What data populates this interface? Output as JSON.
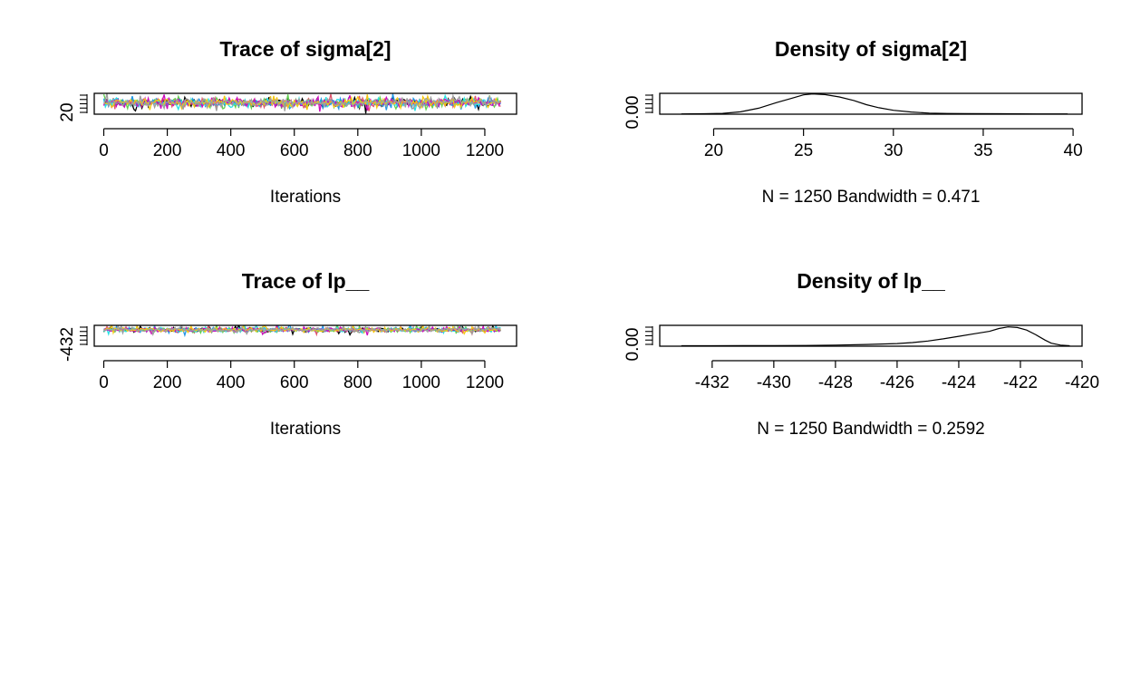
{
  "chart_data": [
    {
      "type": "line",
      "title": "Trace of sigma[2]",
      "xlabel": "Iterations",
      "ylabel": "",
      "xlim": [
        -30,
        1300
      ],
      "ylim": [
        19,
        29
      ],
      "x_ticks": [
        0,
        200,
        400,
        600,
        800,
        1000,
        1200
      ],
      "y_tick_labels": [
        "20"
      ],
      "series_colors": [
        "#000000",
        "#DF536B",
        "#61D04F",
        "#2297E6",
        "#28E2E5",
        "#CD0BBC",
        "#F5C710",
        "#9E9E9E"
      ],
      "series_center": 24.5,
      "series_spread": 1.8,
      "n_iterations": 1250
    },
    {
      "type": "line",
      "title": "Density of sigma[2]",
      "xlabel": "N = 1250   Bandwidth = 0.471",
      "ylabel": "",
      "xlim": [
        17,
        40.5
      ],
      "ylim": [
        -0.003,
        0.2
      ],
      "x_ticks": [
        20,
        25,
        30,
        35,
        40
      ],
      "y_tick_labels": [
        "0.00"
      ],
      "x": [
        18.2,
        19.5,
        20.5,
        21.5,
        22.5,
        23.5,
        24.3,
        25.0,
        25.5,
        26.2,
        27.0,
        27.8,
        28.5,
        29.2,
        30.0,
        31.0,
        32.0,
        33.0,
        34.0,
        36.0,
        38.0,
        39.7
      ],
      "y": [
        0.0,
        0.001,
        0.005,
        0.02,
        0.055,
        0.11,
        0.15,
        0.185,
        0.195,
        0.188,
        0.165,
        0.13,
        0.09,
        0.06,
        0.035,
        0.018,
        0.008,
        0.004,
        0.002,
        0.001,
        0.0,
        0.0
      ]
    },
    {
      "type": "line",
      "title": "Trace of lp__",
      "xlabel": "Iterations",
      "ylabel": "",
      "xlim": [
        -30,
        1300
      ],
      "ylim": [
        -433.5,
        -419.5
      ],
      "x_ticks": [
        0,
        200,
        400,
        600,
        800,
        1000,
        1200
      ],
      "y_tick_labels": [
        "-432"
      ],
      "series_colors": [
        "#000000",
        "#DF536B",
        "#61D04F",
        "#2297E6",
        "#28E2E5",
        "#CD0BBC",
        "#F5C710",
        "#9E9E9E"
      ],
      "series_center": -422.5,
      "series_spread": 1.4,
      "n_iterations": 1250
    },
    {
      "type": "line",
      "title": "Density of lp__",
      "xlabel": "N = 1250   Bandwidth = 0.2592",
      "ylabel": "",
      "xlim": [
        -433.7,
        -420.0
      ],
      "ylim": [
        -0.015,
        0.65
      ],
      "x_ticks": [
        -432,
        -430,
        -428,
        -426,
        -424,
        -422,
        -420
      ],
      "x_tick_labels": [
        "-432",
        "-430",
        "-428",
        "-426",
        "-424",
        "-422",
        "-420"
      ],
      "y_tick_labels": [
        "0.00"
      ],
      "x": [
        -433.0,
        -432.0,
        -431.0,
        -430.0,
        -429.0,
        -428.0,
        -427.0,
        -426.0,
        -425.5,
        -425.0,
        -424.5,
        -424.0,
        -423.5,
        -423.0,
        -422.7,
        -422.4,
        -422.1,
        -421.8,
        -421.5,
        -421.2,
        -421.0,
        -420.7,
        -420.4
      ],
      "y": [
        0.0,
        0.0,
        0.002,
        0.004,
        0.008,
        0.02,
        0.04,
        0.07,
        0.1,
        0.15,
        0.22,
        0.3,
        0.38,
        0.46,
        0.55,
        0.6,
        0.58,
        0.5,
        0.35,
        0.18,
        0.08,
        0.02,
        0.0
      ]
    }
  ]
}
